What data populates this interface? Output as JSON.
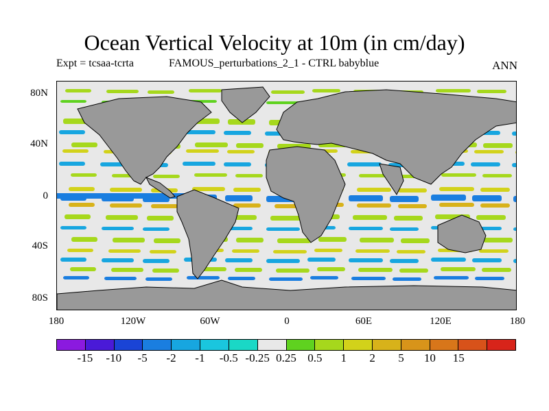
{
  "header": {
    "title": "Ocean Vertical Velocity at 10m (in cm/day)",
    "expt": "Expt = tcsaa-tcrta",
    "run": "FAMOUS_perturbations_2_1 - CTRL babyblue",
    "season": "ANN"
  },
  "axes": {
    "lat_labels": [
      "80N",
      "40N",
      "0",
      "40S",
      "80S"
    ],
    "lon_labels": [
      "180",
      "120W",
      "60W",
      "0",
      "60E",
      "120E",
      "180"
    ]
  },
  "colorbar": {
    "colors": [
      "#8b1adf",
      "#4a1ad8",
      "#1a44d6",
      "#1a7ee0",
      "#17a6e0",
      "#1ac6de",
      "#1ad8c6",
      "#e8e8e8",
      "#5fd21f",
      "#a6d81c",
      "#d2d21a",
      "#d8b21a",
      "#d8941a",
      "#d8761a",
      "#d8521a",
      "#d8241a"
    ],
    "labels": [
      "-15",
      "-10",
      "-5",
      "-2",
      "-1",
      "-0.5",
      "-0.25",
      "0.25",
      "0.5",
      "1",
      "2",
      "5",
      "10",
      "15"
    ]
  },
  "map": {
    "land_color": "#999999",
    "ocean_neutral_color": "#e8e8e8"
  }
}
